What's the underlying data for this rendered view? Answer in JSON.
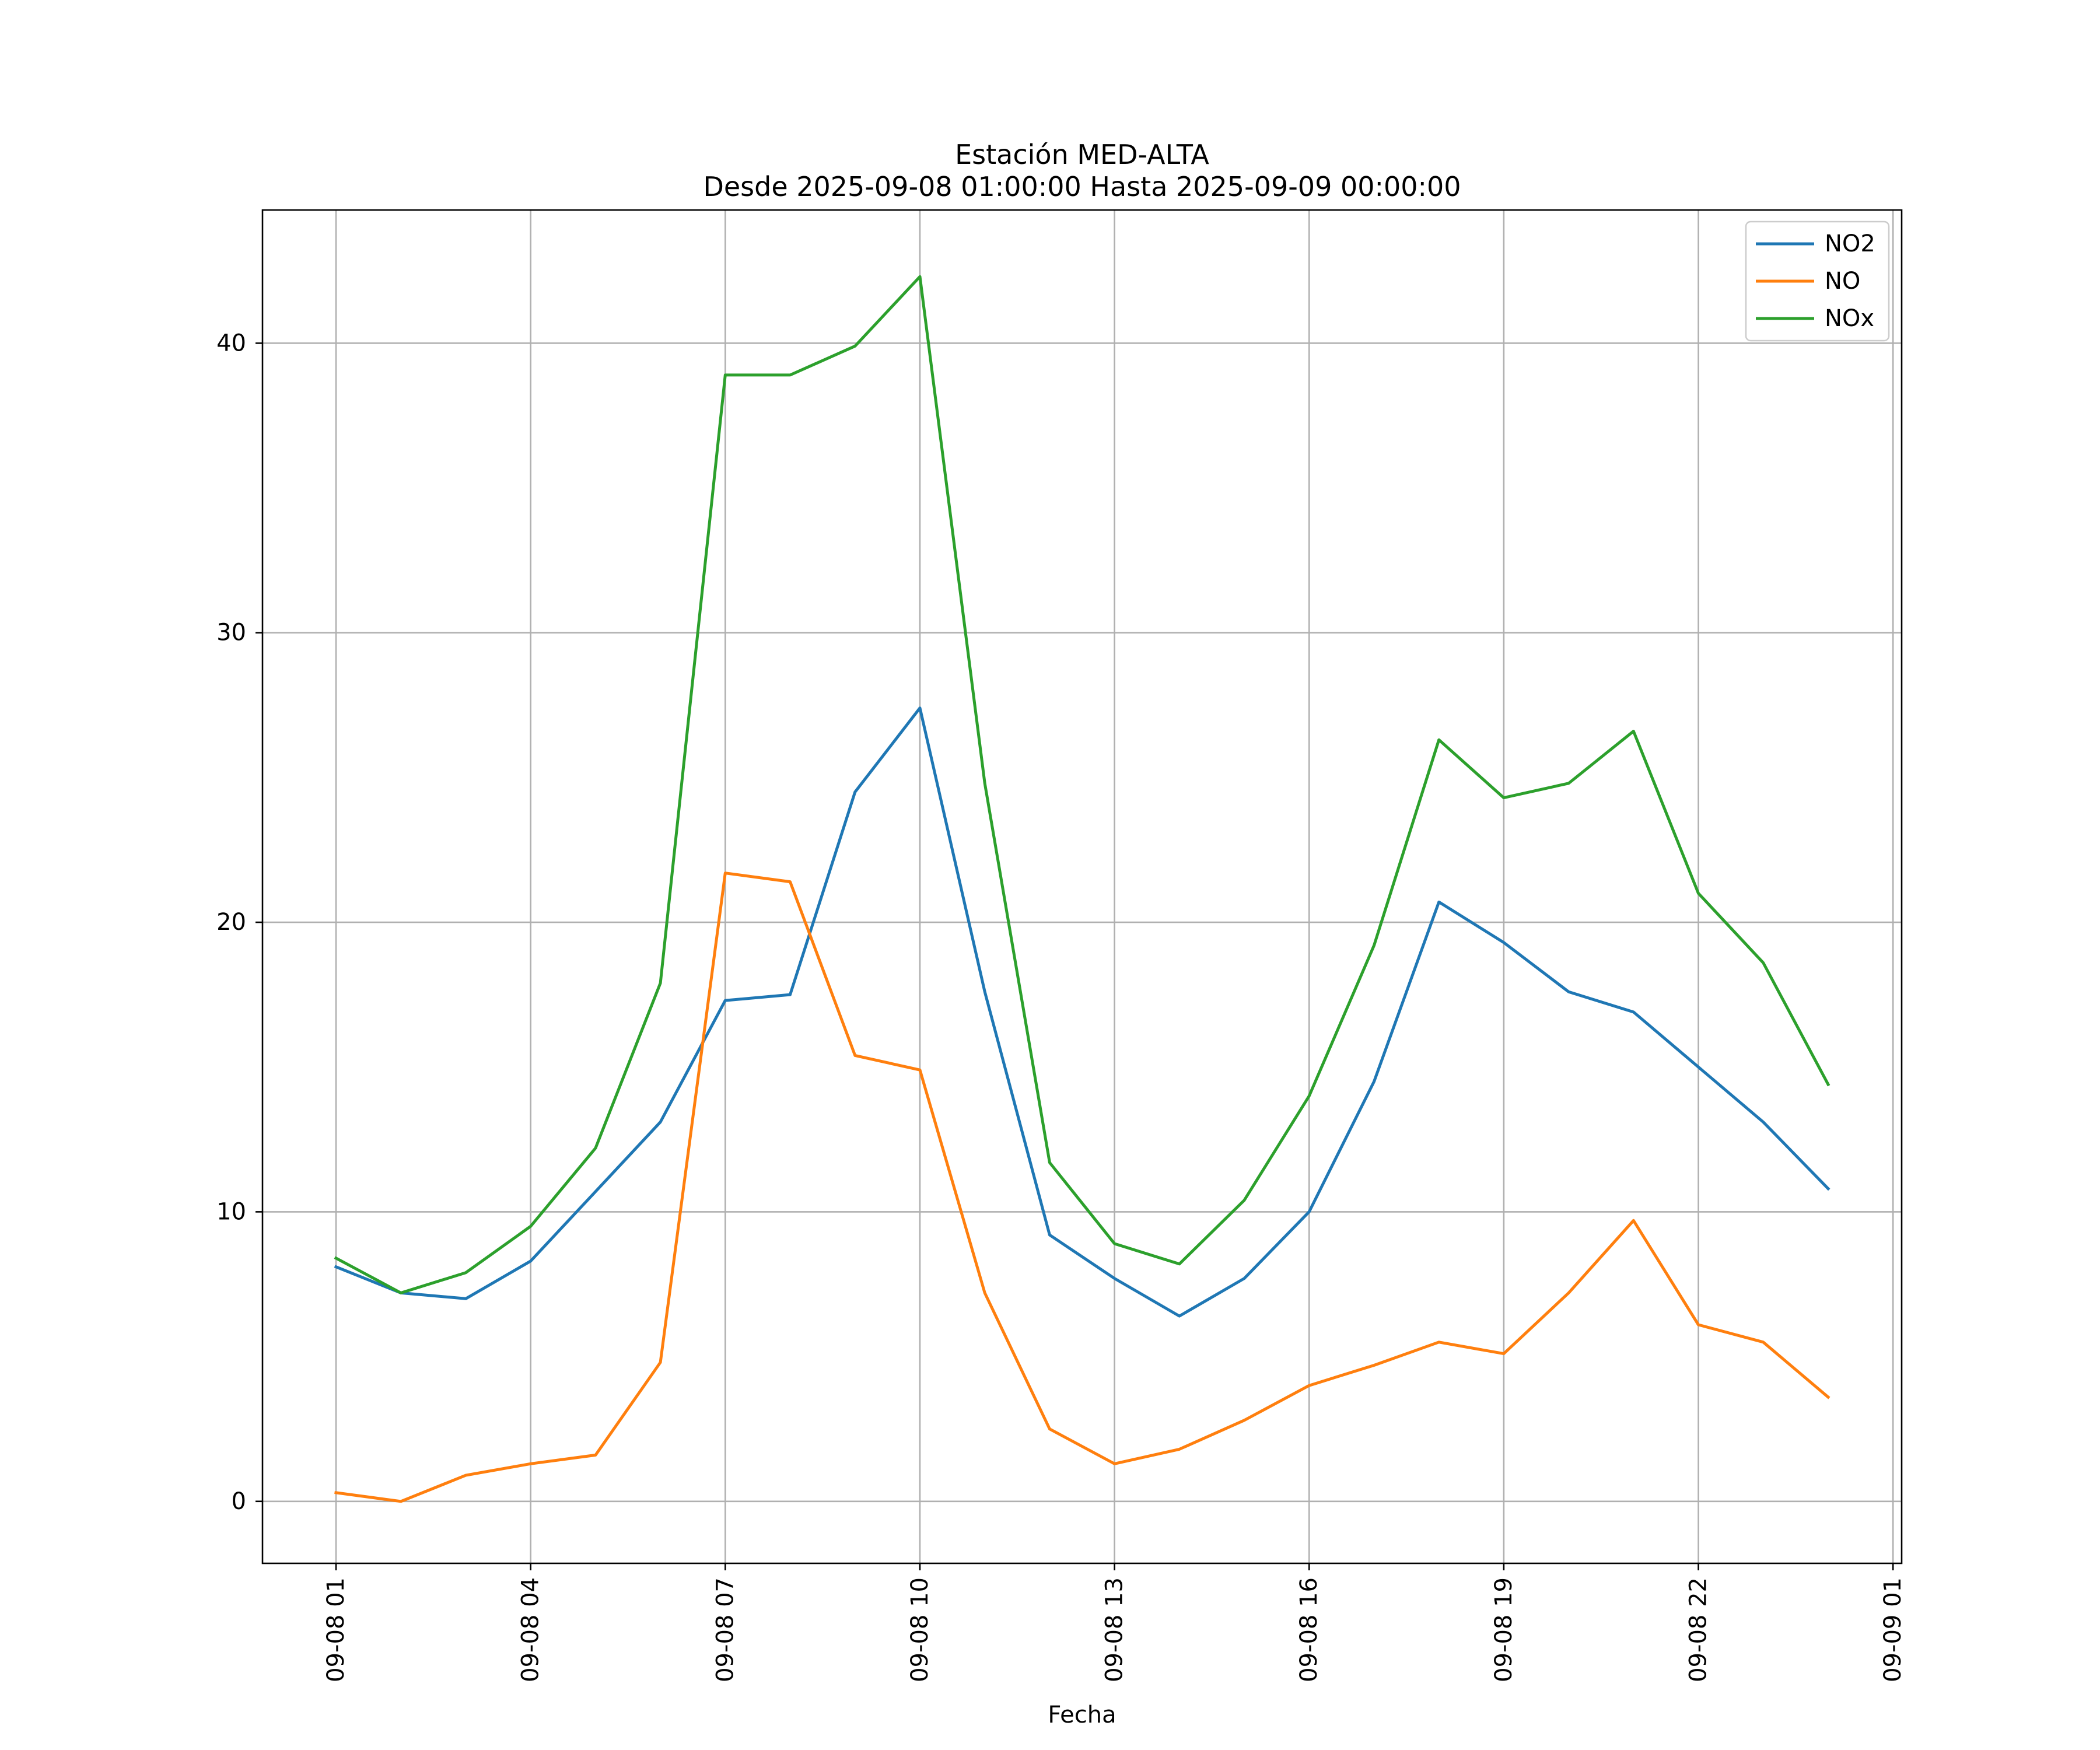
{
  "chart_data": {
    "type": "line",
    "title": "Estación MED-ALTA",
    "subtitle": "Desde 2025-09-08 01:00:00 Hasta 2025-09-09 00:00:00",
    "xlabel": "Fecha",
    "ylabel": "",
    "x": [
      "2025-09-08 01:00",
      "2025-09-08 02:00",
      "2025-09-08 03:00",
      "2025-09-08 04:00",
      "2025-09-08 05:00",
      "2025-09-08 06:00",
      "2025-09-08 07:00",
      "2025-09-08 08:00",
      "2025-09-08 09:00",
      "2025-09-08 10:00",
      "2025-09-08 11:00",
      "2025-09-08 12:00",
      "2025-09-08 13:00",
      "2025-09-08 14:00",
      "2025-09-08 15:00",
      "2025-09-08 16:00",
      "2025-09-08 17:00",
      "2025-09-08 18:00",
      "2025-09-08 19:00",
      "2025-09-08 20:00",
      "2025-09-08 21:00",
      "2025-09-08 22:00",
      "2025-09-08 23:00",
      "2025-09-09 00:00"
    ],
    "xlim": [
      "2025-09-07 23:52",
      "2025-09-09 01:08"
    ],
    "x_ticks": [
      "2025-09-08 01:00",
      "2025-09-08 04:00",
      "2025-09-08 07:00",
      "2025-09-08 10:00",
      "2025-09-08 13:00",
      "2025-09-08 16:00",
      "2025-09-08 19:00",
      "2025-09-08 22:00",
      "2025-09-09 01:00"
    ],
    "x_tick_labels": [
      "09-08 01",
      "09-08 04",
      "09-08 07",
      "09-08 10",
      "09-08 13",
      "09-08 16",
      "09-08 19",
      "09-08 22",
      "09-09 01"
    ],
    "ylim": [
      -2.14,
      44.6
    ],
    "y_ticks": [
      0,
      10,
      20,
      30,
      40
    ],
    "y_tick_labels": [
      "0",
      "10",
      "20",
      "30",
      "40"
    ],
    "grid": true,
    "legend_position": "top-right",
    "series": [
      {
        "name": "NO2",
        "color": "#1f77b4",
        "values": [
          8.1,
          7.2,
          7.0,
          8.3,
          10.7,
          13.1,
          17.3,
          17.5,
          24.5,
          27.4,
          17.6,
          9.2,
          7.7,
          6.4,
          7.7,
          10.0,
          14.5,
          20.7,
          19.3,
          17.6,
          16.9,
          15.0,
          13.1,
          10.8
        ]
      },
      {
        "name": "NO",
        "color": "#ff7f0e",
        "values": [
          0.3,
          0.0,
          0.9,
          1.3,
          1.6,
          4.8,
          21.7,
          21.4,
          15.4,
          14.9,
          7.2,
          2.5,
          1.3,
          1.8,
          2.8,
          4.0,
          4.7,
          5.5,
          5.1,
          7.2,
          9.7,
          6.1,
          5.5,
          3.6
        ]
      },
      {
        "name": "NOx",
        "color": "#2ca02c",
        "values": [
          8.4,
          7.2,
          7.9,
          9.5,
          12.2,
          17.9,
          38.9,
          38.9,
          39.9,
          42.3,
          24.8,
          11.7,
          8.9,
          8.2,
          10.4,
          14.0,
          19.2,
          26.3,
          24.3,
          24.8,
          26.6,
          21.0,
          18.6,
          14.4
        ]
      }
    ]
  }
}
